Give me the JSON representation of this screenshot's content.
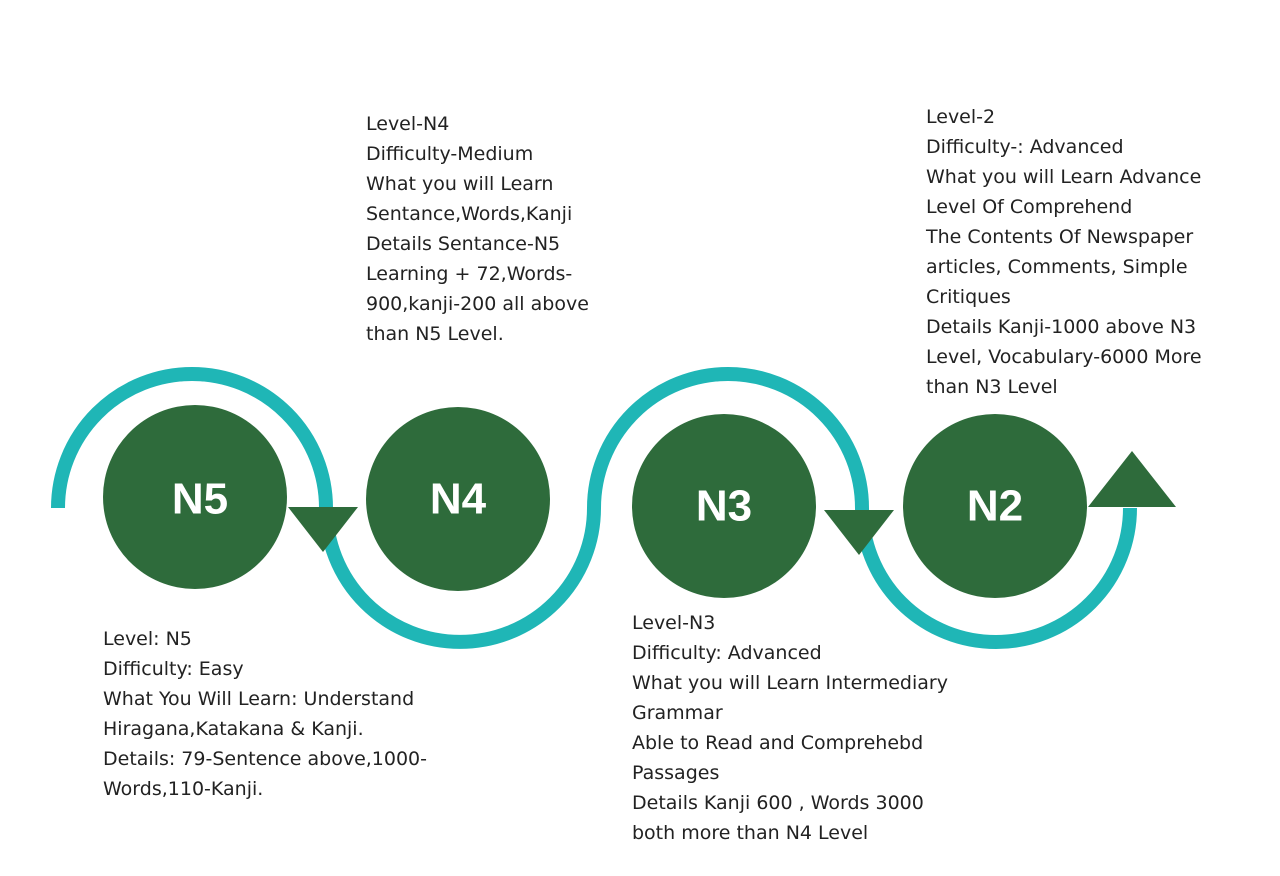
{
  "colors": {
    "path": "#1fb6b6",
    "circle": "#2e6b3b",
    "arrow": "#2e6b3b",
    "label_text": "#ffffff",
    "body_text": "#222222",
    "background": "#ffffff"
  },
  "levels": [
    {
      "id": "n5",
      "label": "N5",
      "details": [
        "Level: N5",
        "Difficulty: Easy",
        "What You Will Learn: Understand",
        "Hiragana,Katakana & Kanji.",
        "Details: 79-Sentence above,1000-",
        "Words,110-Kanji."
      ]
    },
    {
      "id": "n4",
      "label": "N4",
      "details": [
        "Level-N4",
        "Difficulty-Medium",
        "What you will Learn",
        "Sentance,Words,Kanji",
        "Details Sentance-N5",
        "Learning + 72,Words-",
        "900,kanji-200 all above",
        "than N5 Level."
      ]
    },
    {
      "id": "n3",
      "label": "N3",
      "details": [
        "Level-N3",
        "Difficulty: Advanced",
        "What you will Learn Intermediary",
        "Grammar",
        "Able to Read and Comprehebd",
        "Passages",
        "Details Kanji 600 , Words 3000",
        "both more than N4 Level"
      ]
    },
    {
      "id": "n2",
      "label": "N2",
      "details": [
        "Level-2",
        "Difficulty-: Advanced",
        "What you will Learn Advance",
        "Level Of Comprehend",
        "The Contents Of Newspaper",
        "articles, Comments, Simple",
        "Critiques",
        "Details Kanji-1000 above N3",
        "Level, Vocabulary-6000 More",
        "than N3 Level"
      ]
    }
  ]
}
